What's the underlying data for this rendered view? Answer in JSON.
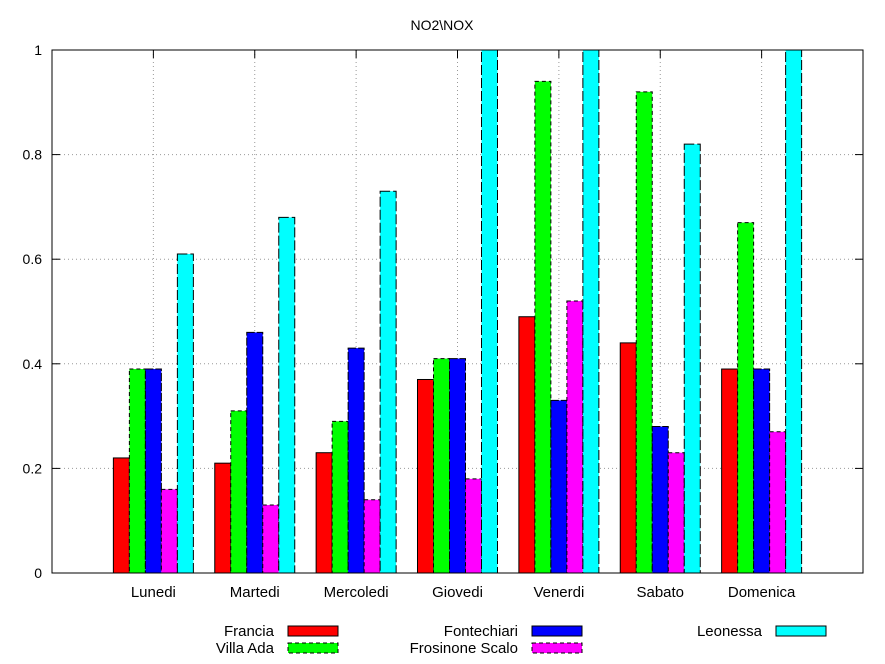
{
  "chart_data": {
    "type": "bar",
    "title": "NO2\\NOX",
    "xlabel": "",
    "ylabel": "",
    "ylim": [
      0,
      1
    ],
    "yticks": [
      "0",
      "0.2",
      "0.4",
      "0.6",
      "0.8",
      "1"
    ],
    "grid": true,
    "legend_position": "bottom",
    "categories": [
      "Lunedi",
      "Martedi",
      "Mercoledi",
      "Giovedi",
      "Venerdi",
      "Sabato",
      "Domenica"
    ],
    "series": [
      {
        "name": "Francia",
        "color": "#ff0000",
        "values": [
          0.22,
          0.21,
          0.23,
          0.37,
          0.49,
          0.44,
          0.39
        ]
      },
      {
        "name": "Villa Ada",
        "color": "#00ff00",
        "values": [
          0.39,
          0.31,
          0.29,
          0.41,
          0.94,
          0.92,
          0.67
        ]
      },
      {
        "name": "Fontechiari",
        "color": "#0000ff",
        "values": [
          0.39,
          0.46,
          0.43,
          0.41,
          0.33,
          0.28,
          0.39
        ]
      },
      {
        "name": "Frosinone Scalo",
        "color": "#ff00ff",
        "values": [
          0.16,
          0.13,
          0.14,
          0.18,
          0.52,
          0.23,
          0.27
        ]
      },
      {
        "name": "Leonessa",
        "color": "#00ffff",
        "values": [
          0.61,
          0.68,
          0.73,
          1.0,
          1.0,
          0.82,
          1.0
        ]
      }
    ]
  }
}
